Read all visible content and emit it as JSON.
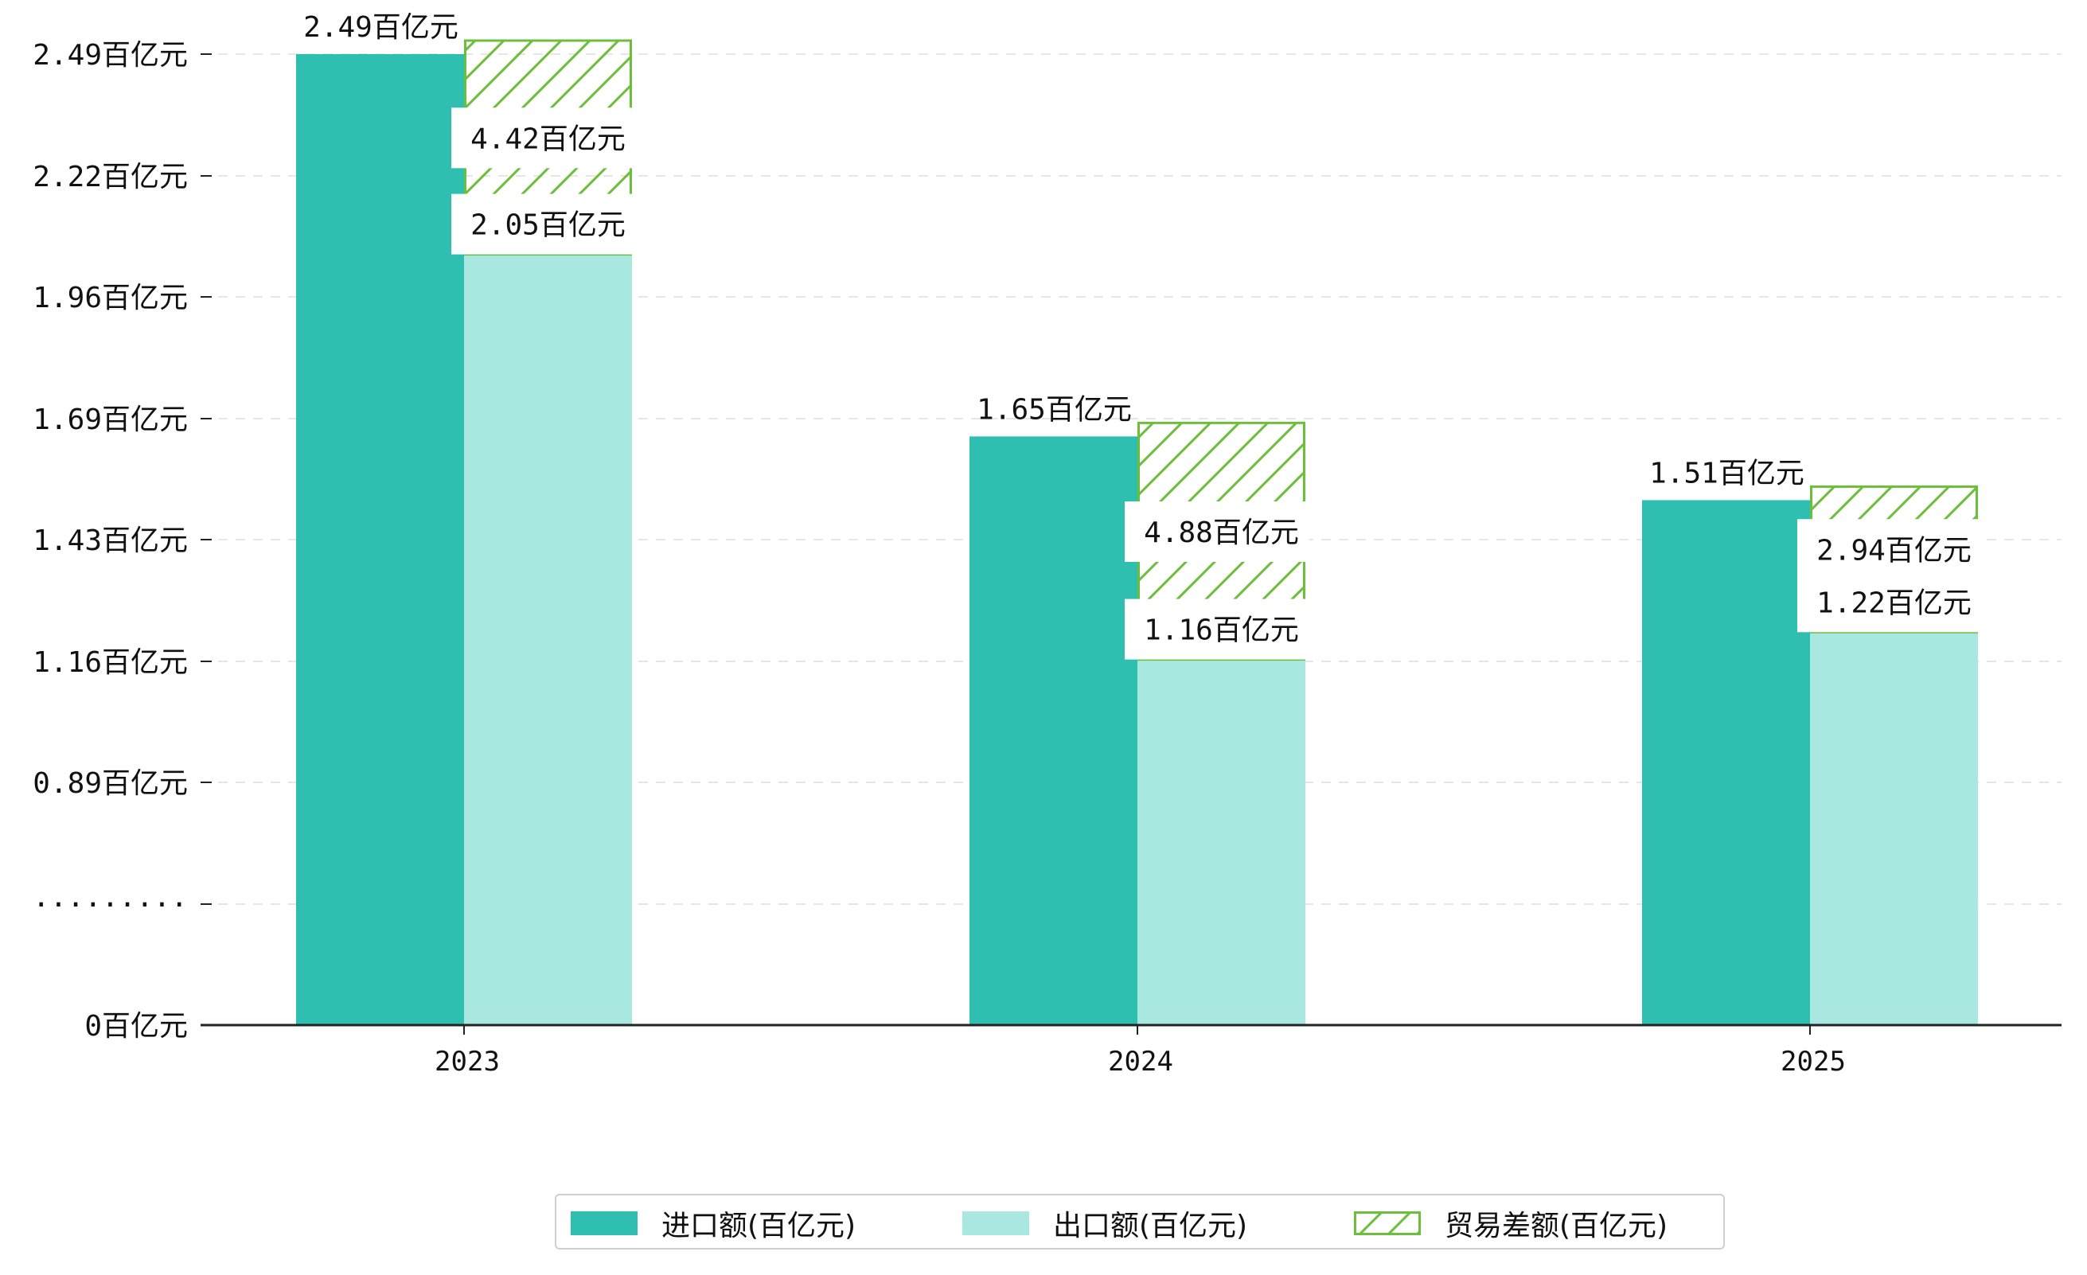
{
  "chart_data": {
    "type": "bar",
    "categories": [
      "2023",
      "2024",
      "2025"
    ],
    "series": [
      {
        "name": "进口额(百亿元)",
        "values": [
          2.49,
          1.65,
          1.51
        ],
        "color": "#2ebfb1"
      },
      {
        "name": "出口额(百亿元)",
        "values": [
          2.05,
          1.16,
          1.22
        ],
        "color": "#a8e8e1"
      },
      {
        "name": "贸易差额(百亿元)",
        "values": [
          4.42,
          4.88,
          2.94
        ],
        "color": "#6cbf3b",
        "pattern": "hatch"
      }
    ],
    "data_labels": {
      "import": [
        "2.49百亿元",
        "1.65百亿元",
        "1.51百亿元"
      ],
      "export": [
        "2.05百亿元",
        "1.16百亿元",
        "1.22百亿元"
      ],
      "balance": [
        "4.42百亿元",
        "4.88百亿元",
        "2.94百亿元"
      ]
    },
    "y_ticks": [
      "0百亿元",
      "·········",
      "0.89百亿元",
      "1.16百亿元",
      "1.43百亿元",
      "1.69百亿元",
      "1.96百亿元",
      "2.22百亿元",
      "2.49百亿元"
    ],
    "y_axis_break": true,
    "grid": true,
    "legend_position": "bottom-center",
    "title": "",
    "xlabel": "",
    "ylabel": ""
  },
  "legend": {
    "items": [
      {
        "label": "进口额(百亿元)"
      },
      {
        "label": "出口额(百亿元)"
      },
      {
        "label": "贸易差额(百亿元)"
      }
    ]
  }
}
